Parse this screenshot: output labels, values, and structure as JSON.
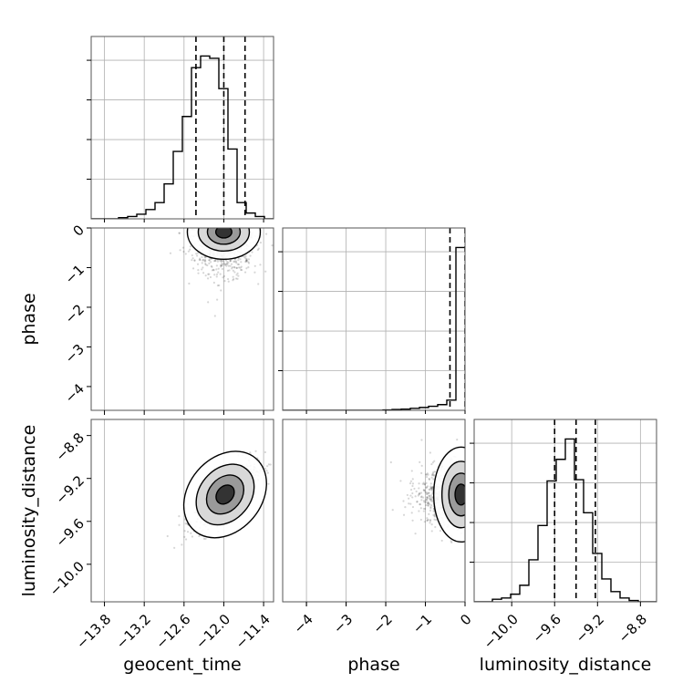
{
  "chart_data": {
    "type": "corner",
    "parameters": [
      "geocent_time",
      "phase",
      "luminosity_distance"
    ],
    "grid": true,
    "quantile_lines": "dashed",
    "ranges": {
      "geocent_time": [
        -14.0,
        -11.25
      ],
      "phase": [
        -4.6,
        0.0
      ],
      "luminosity_distance": [
        -10.35,
        -8.65
      ]
    },
    "ticks": {
      "geocent_time": {
        "values": [
          -13.8,
          -13.2,
          -12.6,
          -12.0,
          -11.4
        ],
        "labels": [
          "−13.8",
          "−13.2",
          "−12.6",
          "−12.0",
          "−11.4"
        ]
      },
      "phase": {
        "values": [
          -4,
          -3,
          -2,
          -1,
          0
        ],
        "labels": [
          "−4",
          "−3",
          "−2",
          "−1",
          "0"
        ]
      },
      "luminosity_distance": {
        "values": [
          -10.0,
          -9.6,
          -9.2,
          -8.8
        ],
        "labels": [
          "−10.0",
          "−9.6",
          "−9.2",
          "−8.8"
        ]
      }
    },
    "histograms": {
      "geocent_time": {
        "bin_edges": [
          -14.0,
          -13.8625,
          -13.725,
          -13.5875,
          -13.45,
          -13.3125,
          -13.175,
          -13.0375,
          -12.9,
          -12.7625,
          -12.625,
          -12.4875,
          -12.35,
          -12.2125,
          -12.075,
          -11.9375,
          -11.8,
          -11.6625,
          -11.525,
          -11.3875,
          -11.25
        ],
        "counts": [
          0,
          0,
          0,
          1,
          2,
          4,
          8,
          14,
          30,
          58,
          88,
          130,
          140,
          138,
          112,
          60,
          14,
          5,
          2,
          0
        ],
        "quantiles": [
          -12.42,
          -12.0,
          -11.68
        ]
      },
      "phase": {
        "bin_edges": [
          -4.6,
          -4.37,
          -4.14,
          -3.91,
          -3.68,
          -3.45,
          -3.22,
          -2.99,
          -2.76,
          -2.53,
          -2.3,
          -2.07,
          -1.84,
          -1.61,
          -1.38,
          -1.15,
          -0.92,
          -0.69,
          -0.46,
          -0.23,
          0.0
        ],
        "counts": [
          0,
          0,
          0,
          0,
          0,
          0,
          0,
          0,
          0,
          0,
          0,
          1,
          2,
          3,
          5,
          7,
          10,
          14,
          25,
          400
        ],
        "quantiles": [
          -0.38,
          0.0
        ]
      },
      "luminosity_distance": {
        "bin_edges": [
          -10.35,
          -10.265,
          -10.18,
          -10.095,
          -10.01,
          -9.925,
          -9.84,
          -9.755,
          -9.67,
          -9.585,
          -9.5,
          -9.415,
          -9.33,
          -9.245,
          -9.16,
          -9.075,
          -8.99,
          -8.905,
          -8.82,
          -8.735,
          -8.65
        ],
        "counts": [
          0,
          0,
          2,
          3,
          6,
          13,
          33,
          60,
          95,
          112,
          128,
          96,
          70,
          38,
          18,
          8,
          3,
          1,
          0,
          0
        ],
        "quantiles": [
          -9.6,
          -9.4,
          -9.22
        ]
      }
    },
    "panels_2d": [
      {
        "x": "geocent_time",
        "y": "phase",
        "center": [
          -12.0,
          -0.1
        ]
      },
      {
        "x": "geocent_time",
        "y": "luminosity_distance",
        "center": [
          -11.98,
          -9.35
        ]
      },
      {
        "x": "phase",
        "y": "luminosity_distance",
        "center": [
          -0.1,
          -9.35
        ]
      }
    ],
    "xlabels": [
      "geocent_time",
      "phase",
      "luminosity_distance"
    ],
    "ylabels": [
      "phase",
      "luminosity_distance"
    ]
  }
}
